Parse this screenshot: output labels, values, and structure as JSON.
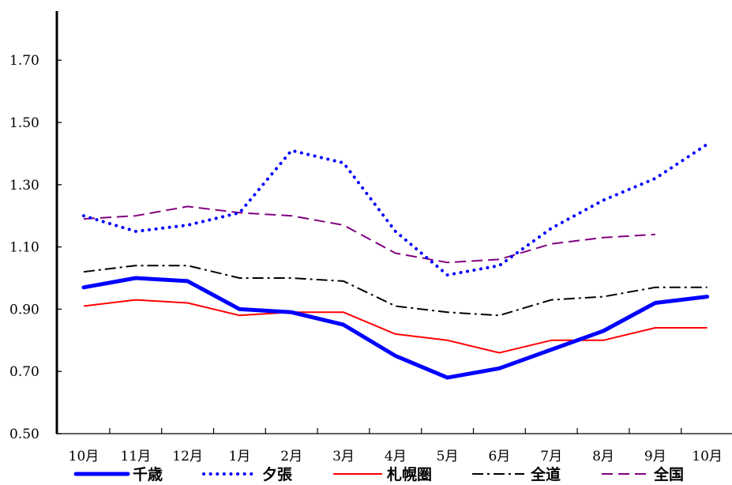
{
  "chart_data": {
    "type": "line",
    "categories": [
      "10月",
      "11月",
      "12月",
      "1月",
      "2月",
      "3月",
      "4月",
      "5月",
      "6月",
      "7月",
      "8月",
      "9月",
      "10月"
    ],
    "ylim": [
      0.5,
      1.9
    ],
    "yticks": [
      "0.50",
      "0.70",
      "0.90",
      "1.10",
      "1.30",
      "1.50",
      "1.70"
    ],
    "grid": false,
    "legend_position": "bottom",
    "series": [
      {
        "name": "千歳",
        "color": "#0000FF",
        "line_style": "solid-thick",
        "values": [
          0.97,
          1.0,
          0.99,
          0.9,
          0.89,
          0.85,
          0.75,
          0.68,
          0.71,
          0.77,
          0.83,
          0.92,
          0.94
        ]
      },
      {
        "name": "夕張",
        "color": "#0000FF",
        "line_style": "dotted",
        "values": [
          1.2,
          1.15,
          1.17,
          1.21,
          1.41,
          1.37,
          1.15,
          1.01,
          1.04,
          1.16,
          1.25,
          1.32,
          1.43
        ]
      },
      {
        "name": "札幌圏",
        "color": "#FF0000",
        "line_style": "solid",
        "values": [
          0.91,
          0.93,
          0.92,
          0.88,
          0.89,
          0.89,
          0.82,
          0.8,
          0.76,
          0.8,
          0.8,
          0.84,
          0.84
        ]
      },
      {
        "name": "全道",
        "color": "#000000",
        "line_style": "dash-dot",
        "values": [
          1.02,
          1.04,
          1.04,
          1.0,
          1.0,
          0.99,
          0.91,
          0.89,
          0.88,
          0.93,
          0.94,
          0.97,
          0.97
        ]
      },
      {
        "name": "全国",
        "color": "#800080",
        "line_style": "dashed",
        "values": [
          1.19,
          1.2,
          1.23,
          1.21,
          1.2,
          1.17,
          1.08,
          1.05,
          1.06,
          1.11,
          1.13,
          1.14,
          null
        ]
      }
    ]
  }
}
